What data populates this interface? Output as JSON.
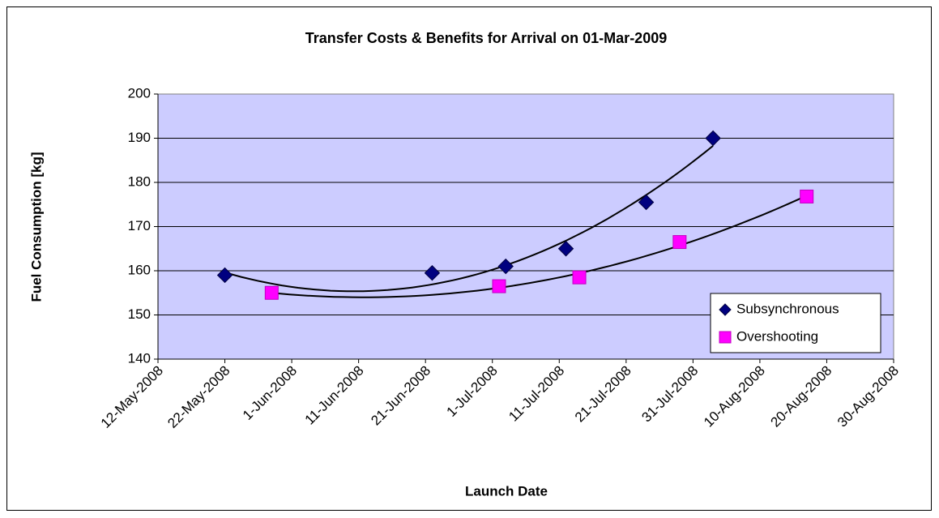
{
  "chart_data": {
    "type": "scatter",
    "title": "Transfer Costs & Benefits for Arrival on 01-Mar-2009",
    "x_label": "Launch Date",
    "y_label": "Fuel Consumption [kg]",
    "series": [
      {
        "name": "Subsynchronous",
        "color": "#000080",
        "marker": "diamond",
        "trendline": true,
        "x": [
          "2008-05-22",
          "2008-06-22",
          "2008-07-03",
          "2008-07-12",
          "2008-07-24",
          "2008-08-03"
        ],
        "values": [
          159,
          159.5,
          161,
          165,
          175.5,
          190
        ]
      },
      {
        "name": "Overshooting",
        "color": "#ff00ff",
        "marker": "square",
        "trendline": true,
        "x": [
          "2008-05-29",
          "2008-07-02",
          "2008-07-14",
          "2008-07-29",
          "2008-08-17"
        ],
        "values": [
          155,
          156.5,
          158.5,
          166.5,
          176.8
        ]
      }
    ],
    "xlim": [
      "2008-05-12",
      "2008-08-30"
    ],
    "xticks": [
      {
        "value": "2008-05-12",
        "label": "12-May-2008"
      },
      {
        "value": "2008-05-22",
        "label": "22-May-2008"
      },
      {
        "value": "2008-06-01",
        "label": "1-Jun-2008"
      },
      {
        "value": "2008-06-11",
        "label": "11-Jun-2008"
      },
      {
        "value": "2008-06-21",
        "label": "21-Jun-2008"
      },
      {
        "value": "2008-07-01",
        "label": "1-Jul-2008"
      },
      {
        "value": "2008-07-11",
        "label": "11-Jul-2008"
      },
      {
        "value": "2008-07-21",
        "label": "21-Jul-2008"
      },
      {
        "value": "2008-07-31",
        "label": "31-Jul-2008"
      },
      {
        "value": "2008-08-10",
        "label": "10-Aug-2008"
      },
      {
        "value": "2008-08-20",
        "label": "20-Aug-2008"
      },
      {
        "value": "2008-08-30",
        "label": "30-Aug-2008"
      }
    ],
    "ylim": [
      140,
      200
    ],
    "yticks": [
      140,
      150,
      160,
      170,
      180,
      190,
      200
    ],
    "grid": true,
    "legend": "lower right"
  }
}
